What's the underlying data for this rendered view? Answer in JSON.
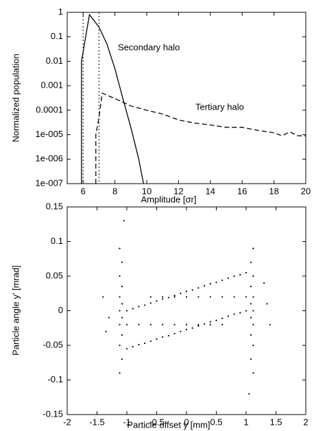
{
  "chart_data": [
    {
      "type": "line",
      "xlabel": "Amplitude [σr]",
      "ylabel": "Normalized population",
      "log_y": true,
      "xlim": [
        5,
        20
      ],
      "ylim": [
        1e-07,
        1
      ],
      "xticks": [
        6,
        8,
        10,
        12,
        14,
        16,
        18,
        20
      ],
      "yticks": [
        {
          "value": 1e-07,
          "label": "1e-007"
        },
        {
          "value": 1e-06,
          "label": "1e-006"
        },
        {
          "value": 1e-05,
          "label": "1e-005"
        },
        0.0001,
        0.001,
        0.01,
        0.1,
        1
      ],
      "vlines": [
        6,
        7
      ],
      "vline_style": "dotted",
      "series": [
        {
          "name": "Secondary halo",
          "color": "#000000",
          "style": "solid",
          "x": [
            5.9,
            5.9,
            6.4,
            7,
            7.5,
            8,
            8.5,
            9,
            9.5,
            9.8
          ],
          "values": [
            1e-07,
            0.01,
            0.8,
            0.25,
            0.05,
            0.005,
            0.0003,
            2e-05,
            1e-06,
            1e-07
          ]
        },
        {
          "name": "Tertiary halo",
          "color": "#000000",
          "style": "dashed",
          "x": [
            6.8,
            6.8,
            7.0,
            7.2,
            8,
            9,
            10,
            11,
            12,
            13,
            14,
            15,
            16,
            17,
            18,
            18.5,
            19,
            19.5,
            20
          ],
          "values": [
            1e-07,
            1e-05,
            5e-05,
            0.0005,
            0.0003,
            0.00015,
            0.0001,
            7e-05,
            4e-05,
            3e-05,
            2.5e-05,
            2e-05,
            2e-05,
            1.5e-05,
            1.2e-05,
            9e-06,
            1.3e-05,
            9e-06,
            9e-06
          ]
        }
      ]
    },
    {
      "type": "scatter",
      "xlabel": "Particle offset y [mm]",
      "ylabel": "Particle angle y' [mrad]",
      "xlim": [
        -2,
        2
      ],
      "ylim": [
        -0.15,
        0.15
      ],
      "xticks": [
        -2,
        -1.5,
        -1,
        -0.5,
        0,
        0.5,
        1,
        1.5,
        2
      ],
      "yticks": [
        -0.15,
        -0.1,
        -0.05,
        0,
        0.05,
        0.1,
        0.15
      ],
      "series": [
        {
          "color": "#000000",
          "x": [
            -1,
            -0.9,
            -0.8,
            -0.7,
            -0.6,
            -0.5,
            -0.4,
            -0.3,
            -0.2,
            -0.1,
            0,
            0.1,
            0.2,
            0.3,
            0.4,
            0.5,
            0.6,
            0.7,
            0.8,
            0.9,
            1,
            -1,
            -0.9,
            -0.8,
            -0.7,
            -0.6,
            -0.5,
            -0.4,
            -0.3,
            -0.2,
            -0.1,
            0,
            0.1,
            0.2,
            0.3,
            0.4,
            0.5,
            0.6,
            0.7,
            0.8,
            0.9,
            1,
            -0.6,
            -0.4,
            -0.2,
            0,
            0.2,
            0.4,
            0.6,
            0.8,
            1,
            -1,
            -0.8,
            -0.6,
            -0.4,
            -0.2,
            0,
            0.2,
            0.4,
            0.6,
            -1.12,
            -1.08,
            -1.12,
            -1.08,
            -1.12,
            -1.08,
            -1.12,
            -1.08,
            -1.12,
            -1.08,
            -1.12,
            -1.08,
            -1.12,
            1.12,
            1.08,
            1.12,
            1.08,
            1.12,
            1.08,
            1.12,
            1.08,
            1.12,
            1.08,
            1.12,
            1.08,
            1.12,
            -1.4,
            -1.35,
            1.35,
            1.4,
            -1.05,
            1.05,
            1.3,
            -1.3
          ],
          "values": [
            0,
            0.003,
            0.006,
            0.008,
            0.011,
            0.014,
            0.017,
            0.019,
            0.022,
            0.025,
            0.028,
            0.03,
            0.033,
            0.036,
            0.039,
            0.041,
            0.044,
            0.047,
            0.05,
            0.052,
            0.055,
            -0.055,
            -0.052,
            -0.049,
            -0.047,
            -0.044,
            -0.041,
            -0.038,
            -0.036,
            -0.033,
            -0.03,
            -0.027,
            -0.025,
            -0.022,
            -0.019,
            -0.016,
            -0.014,
            -0.011,
            -0.008,
            -0.005,
            -0.003,
            0,
            0.02,
            0.02,
            0.02,
            0.02,
            0.02,
            0.02,
            0.02,
            0.02,
            0.02,
            -0.02,
            -0.02,
            -0.02,
            -0.02,
            -0.02,
            -0.02,
            -0.02,
            -0.02,
            -0.02,
            -0.09,
            -0.07,
            -0.05,
            -0.035,
            -0.02,
            -0.01,
            0,
            0.01,
            0.02,
            0.035,
            0.05,
            0.07,
            0.09,
            -0.09,
            -0.07,
            -0.05,
            -0.035,
            -0.02,
            -0.01,
            0,
            0.01,
            0.02,
            0.035,
            0.05,
            0.07,
            0.09,
            0.02,
            -0.03,
            0.01,
            -0.02,
            0.13,
            -0.12,
            0.04,
            -0.01
          ]
        }
      ]
    }
  ]
}
